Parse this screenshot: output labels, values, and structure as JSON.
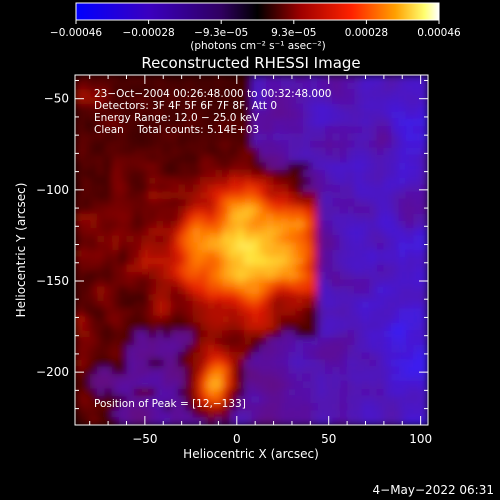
{
  "chart_data": {
    "type": "heatmap",
    "title": "Reconstructed RHESSI Image",
    "xlabel": "Heliocentric X (arcsec)",
    "ylabel": "Heliocentric Y (arcsec)",
    "xlim": [
      -88,
      104
    ],
    "ylim": [
      -229,
      -37
    ],
    "x_ticks": [
      "−50",
      "0",
      "50",
      "100"
    ],
    "y_ticks": [
      "−50",
      "−100",
      "−150",
      "−200"
    ],
    "colorbar": {
      "range": [
        -0.00046,
        0.00046
      ],
      "tick_labels": [
        "−0.00046",
        "−0.00028",
        "−9.3e−05",
        "9.3e−05",
        "0.00028",
        "0.00046"
      ],
      "unit_label": "(photons cm⁻² s⁻¹ asec⁻²)"
    },
    "annotations": [
      "23−Oct−2004 00:26:48.000 to 00:32:48.000",
      "Detectors: 3F 4F 5F 6F 7F 8F, Att 0",
      "Energy Range: 12.0 − 25.0 keV",
      "Clean    Total counts: 5.14E+03"
    ],
    "peak_label": "Position of Peak = [12,−133]",
    "peak": {
      "x": 12,
      "y": -133
    },
    "grid": false,
    "colors": {
      "positive_scale": [
        "#000000",
        "#8a0000",
        "#ff2000",
        "#ff9a00",
        "#ffff60",
        "#ffffff"
      ],
      "negative_scale": [
        "#000000",
        "#3a0070",
        "#4a10c0",
        "#0000ff"
      ]
    }
  },
  "footer": {
    "timestamp": "4−May−2022 06:31"
  }
}
